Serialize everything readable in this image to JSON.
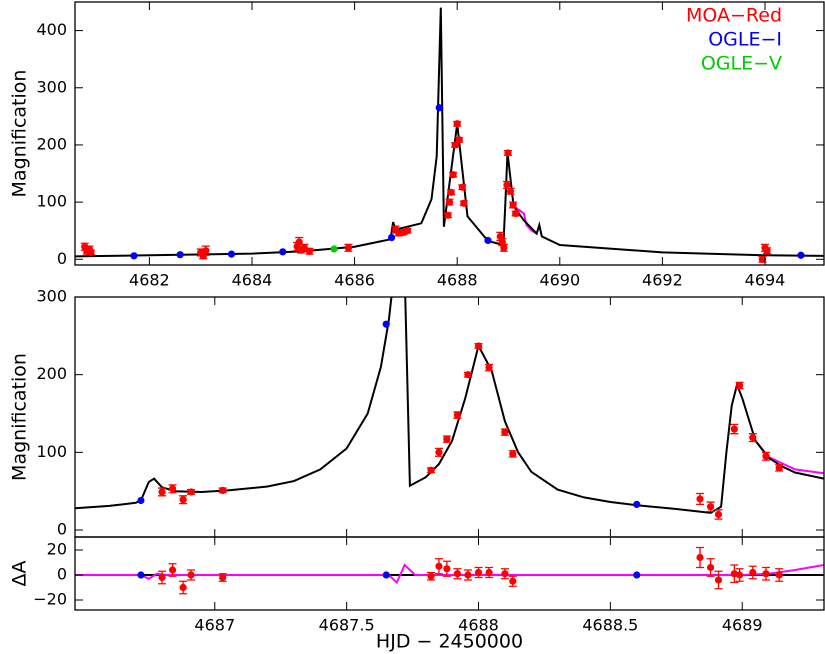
{
  "chart_data": [
    {
      "type": "scatter",
      "y_label": "Magnification",
      "xlim": [
        4680.55,
        4695.15
      ],
      "xticks": [
        4682,
        4684,
        4686,
        4688,
        4690,
        4692,
        4694
      ],
      "xtick_labels": true,
      "ylim": [
        -10,
        450
      ],
      "yticks": [
        0,
        100,
        200,
        300,
        400
      ],
      "legend": "upper right",
      "series": [
        {
          "type": "line",
          "color": "#ff00ff",
          "x": [
            4689.1,
            4689.3,
            4689.35,
            4689.45,
            4689.55
          ],
          "values": [
            93,
            80,
            60,
            50,
            45
          ]
        },
        {
          "type": "line",
          "color": "#000000",
          "x": [
            4680.55,
            4682,
            4684,
            4685,
            4686,
            4686.7,
            4686.75,
            4686.8,
            4687.3,
            4687.5,
            4687.6,
            4687.68,
            4687.74,
            4688.0,
            4688.2,
            4688.6,
            4688.9,
            4688.94,
            4688.98,
            4689.1,
            4689.3,
            4689.55,
            4689.6,
            4689.65,
            4690,
            4692,
            4694,
            4695.15
          ],
          "values": [
            5,
            7,
            10,
            14,
            22,
            35,
            65,
            52,
            63,
            105,
            180,
            440,
            57,
            237,
            75,
            32,
            25,
            100,
            187,
            93,
            68,
            45,
            60,
            40,
            25,
            12,
            7,
            6
          ]
        },
        {
          "name": "MOA−Red",
          "color": "#ff0000",
          "x": [
            4680.74,
            4680.78,
            4680.83,
            4680.86,
            4683.0,
            4683.05,
            4683.1,
            4684.88,
            4684.92,
            4684.96,
            4685.02,
            4685.12,
            4685.88,
            4686.8,
            4686.86,
            4686.95,
            4687.03,
            4687.82,
            4687.85,
            4687.88,
            4687.92,
            4687.96,
            4688.0,
            4688.04,
            4688.1,
            4688.13,
            4688.84,
            4688.88,
            4688.91,
            4688.97,
            4688.99,
            4689.04,
            4689.09,
            4689.14,
            4693.95,
            4694.0,
            4694.04
          ],
          "values": [
            22,
            14,
            18,
            12,
            12,
            6,
            15,
            22,
            30,
            16,
            20,
            14,
            20,
            52,
            46,
            47,
            50,
            77,
            100,
            117,
            148,
            200,
            237,
            209,
            126,
            98,
            40,
            30,
            20,
            130,
            186,
            119,
            95,
            80,
            0,
            20,
            15
          ],
          "errors": [
            6,
            5,
            5,
            4,
            6,
            5,
            8,
            7,
            8,
            5,
            6,
            5,
            6,
            6,
            5,
            4,
            4,
            4,
            5,
            4,
            4,
            4,
            4,
            4,
            4,
            4,
            7,
            6,
            6,
            6,
            4,
            5,
            5,
            4,
            5,
            6,
            5
          ]
        },
        {
          "name": "OGLE−I",
          "color": "#0000ff",
          "x": [
            4681.7,
            4682.6,
            4683.6,
            4684.6,
            4686.72,
            4687.65,
            4688.6,
            4694.7
          ],
          "values": [
            6,
            8,
            9,
            13,
            38,
            265,
            33,
            7
          ]
        },
        {
          "name": "OGLE−V",
          "color": "#00cc00",
          "x": [
            4685.6
          ],
          "values": [
            18
          ]
        }
      ]
    },
    {
      "type": "scatter",
      "y_label": "Magnification",
      "xlim": [
        4686.47,
        4689.31
      ],
      "xticks": [
        4687,
        4687.5,
        4688,
        4688.5,
        4689
      ],
      "xtick_labels": false,
      "ylim": [
        -9,
        300
      ],
      "yticks": [
        0,
        100,
        200,
        300
      ],
      "series": [
        {
          "type": "line",
          "color": "#ff00ff",
          "x": [
            4689.05,
            4689.1,
            4689.2,
            4689.31
          ],
          "values": [
            115,
            94,
            78,
            73
          ]
        },
        {
          "type": "line",
          "color": "#000000",
          "x": [
            4686.47,
            4686.6,
            4686.7,
            4686.72,
            4686.75,
            4686.77,
            4686.8,
            4686.85,
            4686.95,
            4687.05,
            4687.2,
            4687.3,
            4687.4,
            4687.5,
            4687.58,
            4687.63,
            4687.66,
            4687.68,
            4687.72,
            4687.74,
            4687.8,
            4687.85,
            4687.9,
            4687.95,
            4688.0,
            4688.05,
            4688.1,
            4688.15,
            4688.2,
            4688.3,
            4688.4,
            4688.5,
            4688.6,
            4688.75,
            4688.88,
            4688.92,
            4688.94,
            4688.96,
            4688.98,
            4689.0,
            4689.05,
            4689.1,
            4689.15,
            4689.2,
            4689.31
          ],
          "values": [
            28,
            31,
            35,
            38,
            62,
            66,
            55,
            50,
            49,
            51,
            56,
            63,
            78,
            105,
            150,
            210,
            270,
            330,
            330,
            57,
            68,
            85,
            115,
            170,
            237,
            205,
            140,
            100,
            75,
            52,
            42,
            36,
            32,
            27,
            22,
            30,
            100,
            160,
            187,
            170,
            115,
            93,
            82,
            74,
            66
          ]
        },
        {
          "color": "#ff0000",
          "x": [
            4686.8,
            4686.84,
            4686.88,
            4686.91,
            4687.03,
            4687.82,
            4687.85,
            4687.88,
            4687.92,
            4687.96,
            4688.0,
            4688.04,
            4688.1,
            4688.13,
            4688.84,
            4688.88,
            4688.91,
            4688.97,
            4688.99,
            4689.04,
            4689.09,
            4689.14
          ],
          "values": [
            49,
            53,
            39,
            49,
            51,
            77,
            100,
            117,
            148,
            200,
            237,
            209,
            126,
            98,
            40,
            30,
            20,
            130,
            186,
            119,
            95,
            80
          ],
          "errors": [
            5,
            5,
            5,
            3,
            3,
            3,
            5,
            4,
            4,
            3,
            3,
            4,
            4,
            4,
            7,
            6,
            6,
            6,
            4,
            5,
            5,
            4
          ]
        },
        {
          "color": "#0000ff",
          "x": [
            4686.72,
            4687.65,
            4688.6
          ],
          "values": [
            38,
            265,
            33
          ]
        }
      ]
    },
    {
      "type": "scatter",
      "y_label": "ΔA",
      "x_label": "HJD − 2450000",
      "xlim": [
        4686.47,
        4689.31
      ],
      "xticks": [
        4687,
        4687.5,
        4688,
        4688.5,
        4689
      ],
      "xtick_labels": true,
      "ylim": [
        -28,
        30.4
      ],
      "yticks": [
        20,
        0,
        {
          "value": -20,
          "label": "−20"
        }
      ],
      "series": [
        {
          "type": "line",
          "color": "#000000",
          "x": [
            4686.47,
            4689.31
          ],
          "values": [
            0,
            0
          ]
        },
        {
          "type": "line",
          "color": "#ff00ff",
          "x": [
            4686.47,
            4686.72,
            4686.75,
            4686.78,
            4686.82,
            4686.9,
            4687.6,
            4687.66,
            4687.69,
            4687.72,
            4687.76,
            4687.85,
            4689.0,
            4689.1,
            4689.2,
            4689.31
          ],
          "values": [
            0,
            0,
            -3,
            1,
            0,
            0,
            0,
            0,
            -6,
            8,
            0,
            0,
            0,
            1,
            4,
            8
          ]
        },
        {
          "color": "#ff0000",
          "x": [
            4686.8,
            4686.84,
            4686.88,
            4686.91,
            4687.03,
            4687.82,
            4687.85,
            4687.88,
            4687.92,
            4687.96,
            4688.0,
            4688.04,
            4688.1,
            4688.13,
            4688.84,
            4688.88,
            4688.91,
            4688.97,
            4688.99,
            4689.04,
            4689.09,
            4689.14
          ],
          "values": [
            -2,
            4,
            -10,
            0,
            -2,
            -1,
            7,
            5,
            1,
            0,
            2,
            2,
            1,
            -5,
            14,
            6,
            -4,
            1,
            0,
            2,
            1,
            0
          ],
          "errors": [
            5,
            5,
            5,
            4,
            3,
            3,
            6,
            6,
            4,
            4,
            4,
            4,
            4,
            4,
            8,
            7,
            7,
            7,
            5,
            5,
            5,
            5
          ]
        },
        {
          "color": "#0000ff",
          "x": [
            4686.72,
            4687.65,
            4688.6
          ],
          "values": [
            0,
            0,
            0
          ]
        }
      ]
    }
  ]
}
